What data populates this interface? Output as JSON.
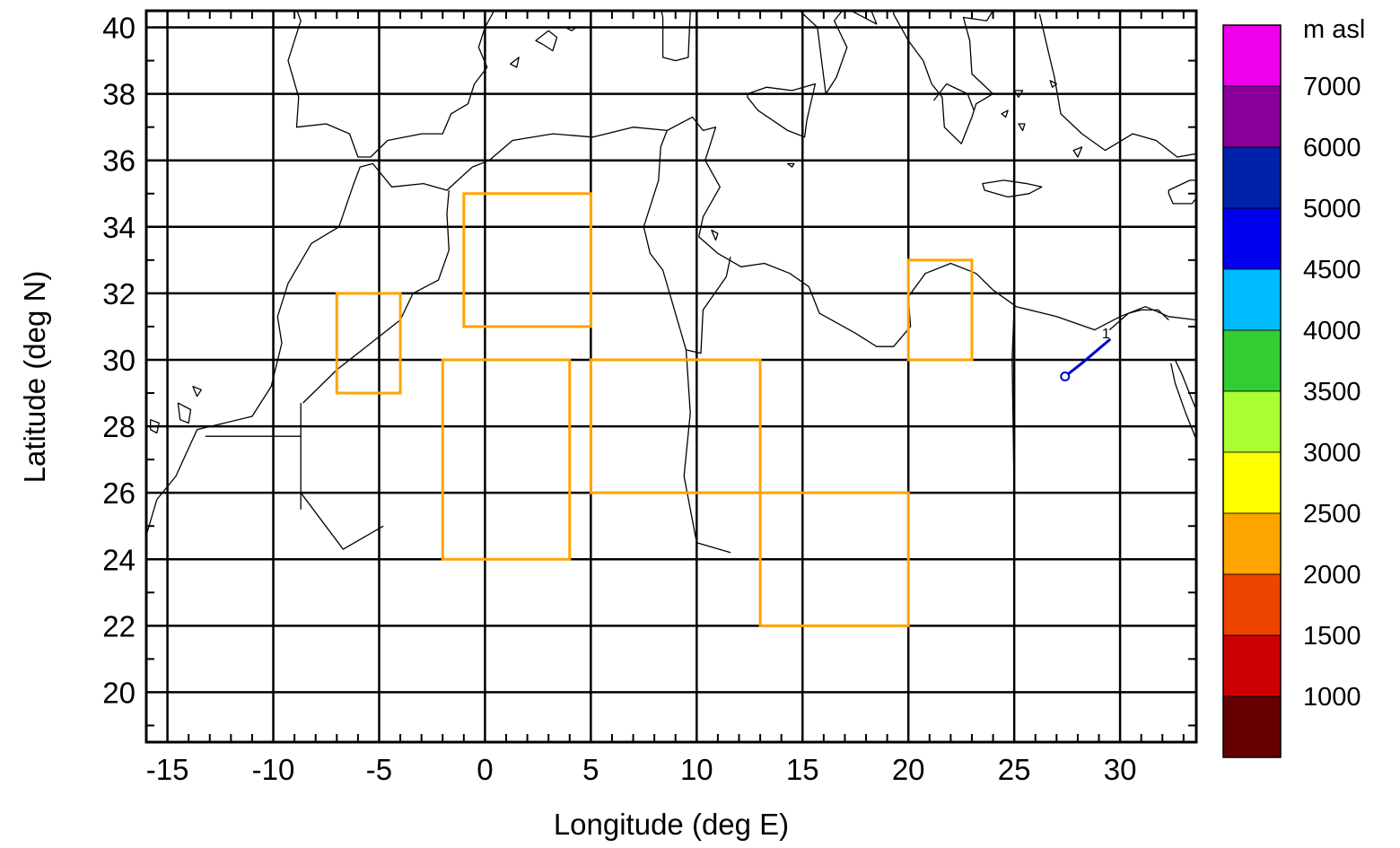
{
  "chart_data": {
    "type": "map",
    "xlabel": "Longitude (deg E)",
    "ylabel": "Latitude (deg N)",
    "xlim": [
      -16.0,
      33.6
    ],
    "ylim": [
      18.5,
      40.5
    ],
    "xticks": [
      -15,
      -10,
      -5,
      0,
      5,
      10,
      15,
      20,
      25,
      30
    ],
    "yticks": [
      20,
      22,
      24,
      26,
      28,
      30,
      32,
      34,
      36,
      38,
      40
    ],
    "grid": true,
    "boxes_color": "#ffa500",
    "boxes": [
      {
        "lon": [
          -7,
          -4
        ],
        "lat": [
          29,
          32
        ]
      },
      {
        "lon": [
          -1,
          5
        ],
        "lat": [
          31,
          35
        ]
      },
      {
        "lon": [
          -2,
          4
        ],
        "lat": [
          24,
          30
        ]
      },
      {
        "lon": [
          5,
          13
        ],
        "lat": [
          26,
          30
        ]
      },
      {
        "lon": [
          13,
          20
        ],
        "lat": [
          22,
          26
        ]
      },
      {
        "lon": [
          20,
          23
        ],
        "lat": [
          30,
          33
        ]
      }
    ],
    "trajectory": {
      "color": "#0000cc",
      "start_label": "1",
      "points": [
        [
          29.5,
          30.6
        ],
        [
          28.2,
          29.9
        ],
        [
          27.4,
          29.5
        ]
      ]
    },
    "colorbar": {
      "unit": "m asl",
      "labels": [
        "7000",
        "6000",
        "5000",
        "4500",
        "4000",
        "3500",
        "3000",
        "2500",
        "2000",
        "1500",
        "1000"
      ],
      "colors": [
        "#ee00ee",
        "#880099",
        "#0022aa",
        "#0000ee",
        "#00bbff",
        "#33cc33",
        "#aaff33",
        "#ffff00",
        "#ffa500",
        "#ee4400",
        "#cc0000",
        "#660000"
      ]
    }
  }
}
